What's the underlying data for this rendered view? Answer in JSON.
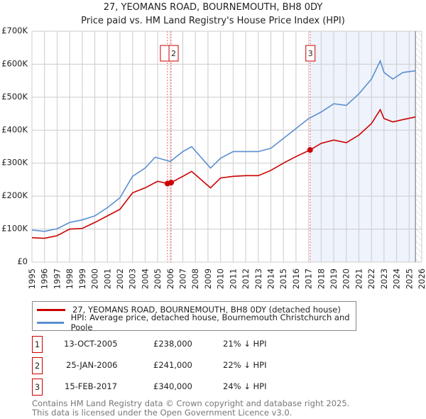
{
  "title": "27, YEOMANS ROAD, BOURNEMOUTH, BH8 0DY",
  "subtitle": "Price paid vs. HM Land Registry's House Price Index (HPI)",
  "chart_data": {
    "type": "line",
    "xlim": [
      1995,
      2026
    ],
    "ylim": [
      0,
      700000
    ],
    "y_ticks": [
      {
        "v": 0,
        "label": "£0"
      },
      {
        "v": 100000,
        "label": "£100K"
      },
      {
        "v": 200000,
        "label": "£200K"
      },
      {
        "v": 300000,
        "label": "£300K"
      },
      {
        "v": 400000,
        "label": "£400K"
      },
      {
        "v": 500000,
        "label": "£500K"
      },
      {
        "v": 600000,
        "label": "£600K"
      },
      {
        "v": 700000,
        "label": "£700K"
      }
    ],
    "x_ticks": [
      "1995",
      "1996",
      "1997",
      "1998",
      "1999",
      "2000",
      "2001",
      "2002",
      "2003",
      "2004",
      "2005",
      "2006",
      "2007",
      "2008",
      "2009",
      "2010",
      "2011",
      "2012",
      "2013",
      "2014",
      "2015",
      "2016",
      "2017",
      "2018",
      "2019",
      "2020",
      "2021",
      "2022",
      "2023",
      "2024",
      "2025",
      "2026"
    ],
    "shaded_from": 2017.12,
    "hatched_from": 2025.5,
    "series": [
      {
        "name": "27, YEOMANS ROAD, BOURNEMOUTH, BH8 0DY (detached house)",
        "color": "#cc0000",
        "x": [
          1995,
          1996,
          1997,
          1998,
          1999,
          2000,
          2001,
          2002,
          2003,
          2004,
          2005,
          2005.78,
          2006.07,
          2007,
          2007.7,
          2009.2,
          2010,
          2011,
          2012,
          2013,
          2014,
          2015,
          2016,
          2017.12,
          2018,
          2019,
          2020,
          2021,
          2022,
          2022.7,
          2023,
          2023.7,
          2024.5,
          2025.5
        ],
        "y": [
          74000,
          72000,
          80000,
          100000,
          102000,
          120000,
          140000,
          160000,
          210000,
          225000,
          245000,
          238000,
          241000,
          260000,
          275000,
          225000,
          255000,
          260000,
          262000,
          262000,
          278000,
          300000,
          320000,
          340000,
          360000,
          370000,
          362000,
          385000,
          420000,
          462000,
          435000,
          425000,
          432000,
          440000
        ]
      },
      {
        "name": "HPI: Average price, detached house, Bournemouth Christchurch and Poole",
        "color": "#5b8fd0",
        "x": [
          1995,
          1996,
          1997,
          1998,
          1999,
          2000,
          2001,
          2002,
          2003,
          2004,
          2004.8,
          2006,
          2007,
          2007.7,
          2009.2,
          2010,
          2011,
          2012,
          2013,
          2014,
          2015,
          2016,
          2017,
          2018,
          2019,
          2020,
          2021,
          2022,
          2022.7,
          2023,
          2023.7,
          2024.5,
          2025.5
        ],
        "y": [
          97000,
          93000,
          101000,
          120000,
          128000,
          140000,
          165000,
          195000,
          260000,
          285000,
          318000,
          305000,
          335000,
          350000,
          285000,
          315000,
          335000,
          335000,
          335000,
          345000,
          375000,
          405000,
          435000,
          455000,
          480000,
          475000,
          510000,
          555000,
          610000,
          575000,
          555000,
          575000,
          580000
        ]
      }
    ],
    "sales": [
      {
        "n": "1",
        "x": 2005.78,
        "y": 238000
      },
      {
        "n": "2",
        "x": 2006.07,
        "y": 241000
      },
      {
        "n": "3",
        "x": 2017.12,
        "y": 340000
      }
    ]
  },
  "legend": [
    "27, YEOMANS ROAD, BOURNEMOUTH, BH8 0DY (detached house)",
    "HPI: Average price, detached house, Bournemouth Christchurch and Poole"
  ],
  "transactions": [
    {
      "n": "1",
      "date": "13-OCT-2005",
      "price": "£238,000",
      "delta": "21% ↓ HPI"
    },
    {
      "n": "2",
      "date": "25-JAN-2006",
      "price": "£241,000",
      "delta": "22% ↓ HPI"
    },
    {
      "n": "3",
      "date": "15-FEB-2017",
      "price": "£340,000",
      "delta": "24% ↓ HPI"
    }
  ],
  "footer": [
    "Contains HM Land Registry data © Crown copyright and database right 2025.",
    "This data is licensed under the Open Government Licence v3.0."
  ]
}
